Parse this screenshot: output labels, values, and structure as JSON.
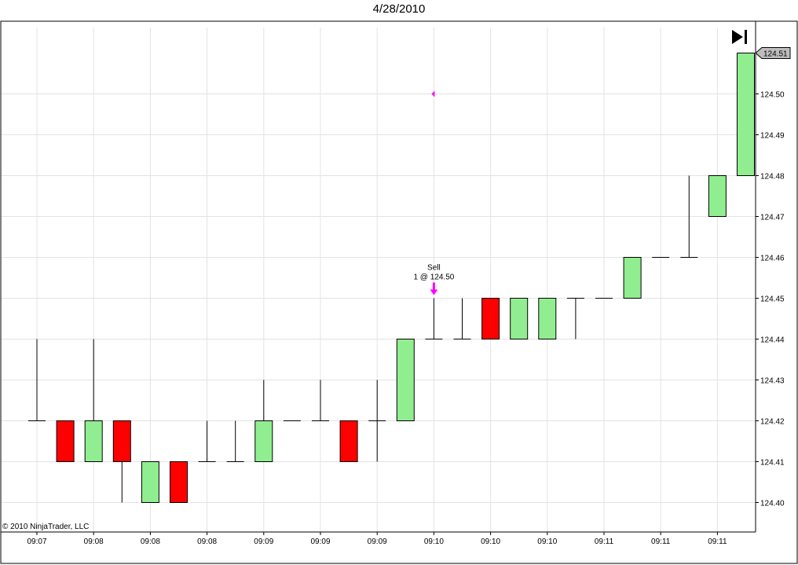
{
  "chart_data": {
    "type": "candlestick",
    "title": "4/28/2010",
    "copyright": "© 2010 NinjaTrader, LLC",
    "xlabel": "",
    "ylabel": "",
    "ylim": [
      124.395,
      124.52
    ],
    "y_ticks": [
      "124.40",
      "124.41",
      "124.42",
      "124.43",
      "124.44",
      "124.45",
      "124.46",
      "124.47",
      "124.48",
      "124.49",
      "124.50"
    ],
    "x_ticks": [
      "09:07",
      "09:08",
      "09:08",
      "09:08",
      "09:09",
      "09:09",
      "09:09",
      "09:10",
      "09:10",
      "09:10",
      "09:11",
      "09:11",
      "09:11"
    ],
    "last_price_label": "124.51",
    "grid": true,
    "colors": {
      "up": "#90EE90",
      "down": "#FF0000",
      "wick": "#000000",
      "marker": "#FF00FF",
      "grid": "#e3e3e3"
    },
    "bars": [
      {
        "o": 124.42,
        "h": 124.44,
        "l": 124.42,
        "c": 124.42
      },
      {
        "o": 124.42,
        "h": 124.42,
        "l": 124.41,
        "c": 124.41
      },
      {
        "o": 124.41,
        "h": 124.44,
        "l": 124.41,
        "c": 124.42
      },
      {
        "o": 124.42,
        "h": 124.42,
        "l": 124.4,
        "c": 124.41
      },
      {
        "o": 124.4,
        "h": 124.41,
        "l": 124.4,
        "c": 124.41
      },
      {
        "o": 124.41,
        "h": 124.41,
        "l": 124.4,
        "c": 124.4
      },
      {
        "o": 124.41,
        "h": 124.42,
        "l": 124.41,
        "c": 124.41
      },
      {
        "o": 124.41,
        "h": 124.42,
        "l": 124.41,
        "c": 124.41
      },
      {
        "o": 124.41,
        "h": 124.43,
        "l": 124.41,
        "c": 124.42
      },
      {
        "o": 124.42,
        "h": 124.42,
        "l": 124.42,
        "c": 124.42
      },
      {
        "o": 124.42,
        "h": 124.43,
        "l": 124.42,
        "c": 124.42
      },
      {
        "o": 124.42,
        "h": 124.42,
        "l": 124.41,
        "c": 124.41
      },
      {
        "o": 124.42,
        "h": 124.43,
        "l": 124.41,
        "c": 124.42
      },
      {
        "o": 124.42,
        "h": 124.44,
        "l": 124.42,
        "c": 124.44
      },
      {
        "o": 124.44,
        "h": 124.45,
        "l": 124.44,
        "c": 124.44
      },
      {
        "o": 124.44,
        "h": 124.45,
        "l": 124.44,
        "c": 124.44
      },
      {
        "o": 124.45,
        "h": 124.45,
        "l": 124.44,
        "c": 124.44
      },
      {
        "o": 124.44,
        "h": 124.45,
        "l": 124.44,
        "c": 124.45
      },
      {
        "o": 124.44,
        "h": 124.45,
        "l": 124.44,
        "c": 124.45
      },
      {
        "o": 124.45,
        "h": 124.45,
        "l": 124.44,
        "c": 124.45
      },
      {
        "o": 124.45,
        "h": 124.45,
        "l": 124.45,
        "c": 124.45
      },
      {
        "o": 124.45,
        "h": 124.46,
        "l": 124.45,
        "c": 124.46
      },
      {
        "o": 124.46,
        "h": 124.46,
        "l": 124.46,
        "c": 124.46
      },
      {
        "o": 124.46,
        "h": 124.48,
        "l": 124.46,
        "c": 124.46
      },
      {
        "o": 124.47,
        "h": 124.48,
        "l": 124.47,
        "c": 124.48
      },
      {
        "o": 124.48,
        "h": 124.51,
        "l": 124.48,
        "c": 124.51
      }
    ],
    "annotations": {
      "sell_bar_index": 14,
      "sell_text_line1": "Sell",
      "sell_text_line2": "1 @ 124.50",
      "order_marker_price": 124.5
    }
  }
}
